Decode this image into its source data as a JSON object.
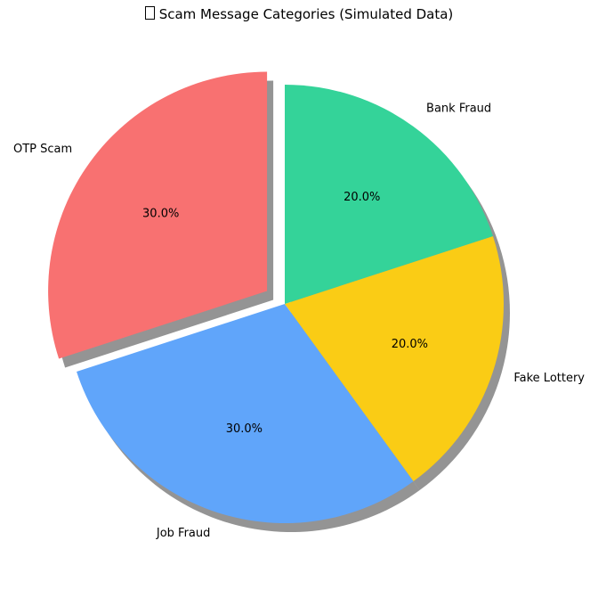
{
  "chart_data": {
    "type": "pie",
    "title": "Scam Message Categories (Simulated Data)",
    "title_icon": "missing-glyph-box",
    "categories": [
      "OTP Scam",
      "Job Fraud",
      "Fake Lottery",
      "Bank Fraud"
    ],
    "values": [
      30,
      30,
      20,
      20
    ],
    "percent_labels": [
      "30.0%",
      "30.0%",
      "20.0%",
      "20.0%"
    ],
    "colors": [
      "#f87171",
      "#60a5fa",
      "#facc15",
      "#34d399"
    ],
    "exploded": [
      "OTP Scam"
    ],
    "start_angle_deg": 90,
    "direction": "counterclockwise",
    "shadow": true
  }
}
